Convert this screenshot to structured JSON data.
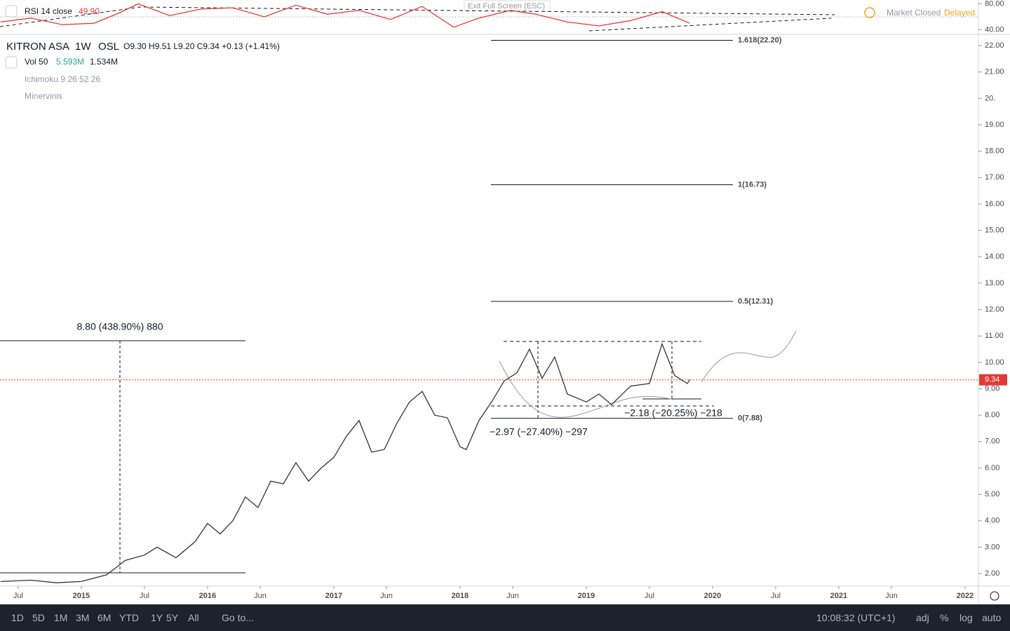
{
  "header": {
    "rsi_label": "RSI 14 close",
    "rsi_value": "49.90",
    "exit": "Exit Full Screen (ESC)",
    "status": "Market Closed",
    "delayed": "Delayed"
  },
  "legend": {
    "symbol": "KITRON ASA",
    "interval": "1W",
    "exchange": "OSL",
    "ohlc": "O9.30 H9.51 L9.20 C9.34 +0.13 (+1.41%)",
    "vol": "Vol 50",
    "vol_value": "5.593M",
    "vol_avg": "1.534M",
    "ichimoku": "Ichimoku 9 26 52 26",
    "minervini": "Minervinis"
  },
  "annotations": [
    "8.80 (438.90%) 880",
    "−2.97 (−27.40%) −297",
    "−2.18 (−20.25%) −218"
  ],
  "toolbar": {
    "ranges": [
      "1D",
      "5D",
      "1M",
      "3M",
      "6M",
      "YTD",
      "1Y",
      "5Y",
      "All"
    ],
    "goto": "Go to...",
    "time": "10:08:32 (UTC+1)",
    "options": [
      "adj",
      "%",
      "log",
      "auto"
    ]
  },
  "chart_data": [
    {
      "type": "line",
      "name": "RSI",
      "color": "#e53935",
      "xlim": [
        2014.356,
        2022.106
      ],
      "ylim": [
        34,
        86
      ],
      "yticks": [
        {
          "value": 80,
          "label": "80.00"
        },
        {
          "value": 40,
          "label": "40.00"
        }
      ],
      "x": [
        2014.36,
        2014.6,
        2014.85,
        2015.1,
        2015.3,
        2015.45,
        2015.7,
        2015.95,
        2016.2,
        2016.45,
        2016.7,
        2016.95,
        2017.2,
        2017.45,
        2017.7,
        2017.95,
        2018.15,
        2018.4,
        2018.6,
        2018.85,
        2019.1,
        2019.35,
        2019.6,
        2019.82
      ],
      "values": [
        52,
        58,
        48,
        50,
        66,
        80,
        62,
        72,
        74,
        60,
        78,
        64,
        70,
        56,
        76,
        44,
        58,
        70,
        64,
        52,
        46,
        54,
        68,
        50
      ]
    },
    {
      "type": "line",
      "name": "KITRON ASA",
      "color": "#333333",
      "xlim": [
        2014.356,
        2022.106
      ],
      "ylim": [
        1.55,
        22.4
      ],
      "xticks": [
        {
          "value": 2014.5,
          "label": "Jul"
        },
        2015,
        {
          "value": 2015.5,
          "label": "Jul"
        },
        2016,
        {
          "value": 2016.417,
          "label": "Jun"
        },
        2017,
        {
          "value": 2017.417,
          "label": "Jun"
        },
        2018,
        {
          "value": 2018.417,
          "label": "Jun"
        },
        2019,
        {
          "value": 2019.5,
          "label": "Jul"
        },
        2020,
        {
          "value": 2020.5,
          "label": "Jul"
        },
        2021,
        {
          "value": 2021.417,
          "label": "Jun"
        },
        2022
      ],
      "yticks": [
        {
          "value": 2,
          "label": "2.00"
        },
        {
          "value": 3,
          "label": "3.00"
        },
        {
          "value": 4,
          "label": "4.00"
        },
        {
          "value": 5,
          "label": "5.00"
        },
        {
          "value": 6,
          "label": "6.00"
        },
        {
          "value": 7,
          "label": "7.00"
        },
        {
          "value": 8,
          "label": "8.00"
        },
        {
          "value": 9,
          "label": "9.00"
        },
        {
          "value": 10,
          "label": "10.00"
        },
        {
          "value": 11,
          "label": "11.00"
        },
        {
          "value": 12,
          "label": "12.00"
        },
        {
          "value": 13,
          "label": "13.00"
        },
        {
          "value": 14,
          "label": "14.00"
        },
        {
          "value": 15,
          "label": "15.00"
        },
        {
          "value": 16,
          "label": "16.00"
        },
        {
          "value": 17,
          "label": "17.00"
        },
        {
          "value": 18,
          "label": "18.00"
        },
        {
          "value": 19,
          "label": "19.00"
        },
        {
          "value": 20,
          "label": "20."
        },
        {
          "value": 21,
          "label": "21.00"
        },
        {
          "value": 22,
          "label": "22.00"
        }
      ],
      "x": [
        2014.36,
        2014.6,
        2014.8,
        2015.0,
        2015.2,
        2015.35,
        2015.5,
        2015.6,
        2015.75,
        2015.9,
        2016.0,
        2016.1,
        2016.2,
        2016.3,
        2016.4,
        2016.5,
        2016.6,
        2016.7,
        2016.8,
        2016.9,
        2017.0,
        2017.1,
        2017.2,
        2017.3,
        2017.4,
        2017.5,
        2017.6,
        2017.7,
        2017.8,
        2017.9,
        2018.0,
        2018.05,
        2018.15,
        2018.25,
        2018.35,
        2018.45,
        2018.55,
        2018.65,
        2018.75,
        2018.85,
        2019.0,
        2019.1,
        2019.2,
        2019.35,
        2019.5,
        2019.6,
        2019.7,
        2019.8,
        2019.82
      ],
      "values": [
        1.7,
        1.75,
        1.65,
        1.7,
        1.95,
        2.5,
        2.7,
        3.0,
        2.6,
        3.2,
        3.9,
        3.5,
        4.0,
        4.9,
        4.5,
        5.5,
        5.4,
        6.2,
        5.5,
        6.0,
        6.4,
        7.2,
        7.8,
        6.6,
        6.7,
        7.7,
        8.5,
        8.9,
        8.0,
        7.9,
        6.8,
        6.7,
        7.8,
        8.5,
        9.3,
        9.6,
        10.5,
        9.4,
        10.2,
        8.8,
        8.5,
        8.8,
        8.4,
        9.1,
        9.2,
        10.7,
        9.5,
        9.2,
        9.34
      ],
      "levels": [
        {
          "value": 22.2,
          "label": "1.618(22.20)"
        },
        {
          "value": 16.73,
          "label": "1(16.73)"
        },
        {
          "value": 12.31,
          "label": "0.5(12.31)"
        },
        {
          "value": 7.88,
          "label": "0(7.88)"
        }
      ],
      "last_price": {
        "value": 9.34,
        "label": "9.34"
      }
    }
  ]
}
